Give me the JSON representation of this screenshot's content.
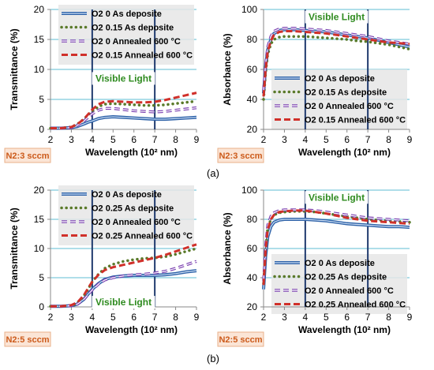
{
  "colors": {
    "o2_low": "#2e62a8",
    "o2_mid": "#5a7a2a",
    "o2_low_annealed": "#7a3fb0",
    "o2_mid_annealed": "#d0302a",
    "visible_text": "#2e8b1f",
    "condition_text": "#cc5a1a",
    "condition_box": "#fbe5d6",
    "gridline": "#5fbcd3"
  },
  "parts": [
    "(a)",
    "(b)"
  ],
  "chart_data": [
    {
      "type": "line",
      "xlabel": "Wavelength (10² nm)",
      "ylabel": "Transmittance (%)",
      "xlim": [
        2,
        9
      ],
      "ylim": [
        0,
        20
      ],
      "xticks": [
        2,
        3,
        4,
        5,
        6,
        7,
        8,
        9
      ],
      "yticks": [
        0,
        5,
        10,
        15,
        20
      ],
      "grid": "horizontal",
      "legend": "top",
      "condition": "N2:3 sccm",
      "visible_region": {
        "label": "Visible Light",
        "from": 4,
        "to": 7,
        "label_y": 8.5
      },
      "x": [
        2,
        2.5,
        3,
        3.3,
        3.6,
        3.8,
        4,
        4.3,
        4.6,
        5,
        5.5,
        6,
        6.5,
        7,
        7.5,
        8,
        8.5,
        9
      ],
      "series": [
        {
          "name": "O2 0 As deposite",
          "style": "solid-double",
          "values": [
            0.2,
            0.2,
            0.3,
            0.5,
            0.9,
            1.2,
            1.4,
            1.8,
            2.0,
            2.1,
            2.0,
            1.9,
            1.8,
            1.7,
            1.7,
            1.8,
            1.9,
            2.0
          ]
        },
        {
          "name": "O2 0.15 As deposite",
          "style": "dotted",
          "values": [
            0.2,
            0.2,
            0.4,
            0.9,
            1.7,
            2.4,
            3.0,
            3.8,
            4.2,
            4.3,
            4.2,
            4.1,
            4.0,
            4.0,
            4.1,
            4.3,
            4.5,
            4.7
          ]
        },
        {
          "name": "O2 0 Annealed 600 °C",
          "style": "dashed-hollow",
          "values": [
            0.2,
            0.2,
            0.3,
            0.7,
            1.4,
            2.0,
            2.6,
            3.2,
            3.5,
            3.5,
            3.3,
            3.1,
            3.0,
            2.9,
            3.0,
            3.2,
            3.4,
            3.6
          ]
        },
        {
          "name": "O2 0.15 Annealed 600 °C",
          "style": "dashed",
          "values": [
            0.2,
            0.2,
            0.4,
            0.9,
            1.7,
            2.5,
            3.3,
            4.2,
            4.6,
            4.7,
            4.6,
            4.5,
            4.5,
            4.6,
            4.9,
            5.3,
            5.7,
            6.1
          ]
        }
      ]
    },
    {
      "type": "line",
      "xlabel": "Wavelength (10² nm)",
      "ylabel": "Absorbance (%)",
      "xlim": [
        2,
        9
      ],
      "ylim": [
        20,
        100
      ],
      "xticks": [
        2,
        3,
        4,
        5,
        6,
        7,
        8,
        9
      ],
      "yticks": [
        20,
        40,
        60,
        80,
        100
      ],
      "grid": "horizontal",
      "legend": "bottom",
      "condition": "N2:3 sccm",
      "visible_region": {
        "label": "Visible Light",
        "from": 4,
        "to": 7,
        "label_y": 95
      },
      "x": [
        2,
        2.1,
        2.2,
        2.35,
        2.5,
        2.75,
        3,
        3.5,
        4,
        4.5,
        5,
        5.5,
        6,
        6.5,
        7,
        7.5,
        8,
        8.5,
        9
      ],
      "series": [
        {
          "name": "O2 0 As deposite",
          "style": "solid-double",
          "values": [
            44,
            62,
            73,
            80,
            84,
            86,
            86.5,
            86.5,
            86,
            85.5,
            85,
            84,
            83,
            82,
            81,
            79.5,
            78,
            76.5,
            75
          ]
        },
        {
          "name": "O2 0.15 As deposite",
          "style": "dotted",
          "values": [
            40,
            58,
            70,
            77,
            80,
            81.5,
            82,
            82,
            82,
            81.5,
            81,
            80.5,
            80,
            79,
            78.5,
            77.5,
            76.5,
            75,
            73.5
          ]
        },
        {
          "name": "O2 0 Annealed 600 °C",
          "style": "dashed-hollow",
          "values": [
            46,
            64,
            75,
            82,
            85.5,
            87,
            87.5,
            87.5,
            87,
            86.5,
            86,
            85,
            84,
            83,
            82,
            80.5,
            79,
            78,
            77
          ]
        },
        {
          "name": "O2 0.15 Annealed 600 °C",
          "style": "dashed",
          "values": [
            42,
            60,
            72,
            79,
            83,
            85,
            85.5,
            85.5,
            85,
            84.5,
            84,
            83,
            82,
            81,
            80,
            79,
            78,
            77.5,
            77
          ]
        }
      ]
    },
    {
      "type": "line",
      "xlabel": "Wavelength (10² nm)",
      "ylabel": "Transmittance (%)",
      "xlim": [
        2,
        9
      ],
      "ylim": [
        0,
        20
      ],
      "xticks": [
        2,
        3,
        4,
        5,
        6,
        7,
        8,
        9
      ],
      "yticks": [
        0,
        5,
        10,
        15,
        20
      ],
      "grid": "horizontal",
      "legend": "top",
      "condition": "N2:5 sccm",
      "visible_region": {
        "label": "Visible Light",
        "from": 4,
        "to": 7,
        "label_y": 0.8
      },
      "x": [
        2,
        2.5,
        3,
        3.3,
        3.6,
        3.8,
        4,
        4.3,
        4.6,
        5,
        5.5,
        6,
        6.5,
        7,
        7.5,
        8,
        8.5,
        9
      ],
      "series": [
        {
          "name": "O2 0 As deposite",
          "style": "solid-double",
          "values": [
            0.1,
            0.1,
            0.2,
            0.5,
            1.3,
            2.2,
            3.0,
            4.0,
            4.7,
            5.1,
            5.3,
            5.4,
            5.4,
            5.4,
            5.5,
            5.7,
            6.0,
            6.2
          ]
        },
        {
          "name": "O2 0.25 As deposite",
          "style": "dotted",
          "values": [
            0.1,
            0.1,
            0.2,
            0.7,
            1.9,
            3.0,
            4.3,
            5.6,
            6.6,
            7.3,
            7.8,
            8.1,
            8.3,
            8.4,
            8.6,
            9.0,
            9.5,
            10.0
          ]
        },
        {
          "name": "O2 0 Annealed 600 °C",
          "style": "dashed-hollow",
          "values": [
            0.1,
            0.1,
            0.2,
            0.5,
            1.3,
            2.1,
            2.9,
            3.9,
            4.6,
            5.0,
            5.3,
            5.5,
            5.6,
            5.8,
            6.1,
            6.6,
            7.2,
            7.8
          ]
        },
        {
          "name": "O2 0.25 Annealed 600 °C",
          "style": "dashed",
          "values": [
            0.1,
            0.1,
            0.3,
            0.8,
            2.0,
            3.2,
            4.3,
            5.5,
            6.3,
            6.8,
            7.2,
            7.6,
            8.0,
            8.4,
            8.9,
            9.5,
            10.1,
            10.7
          ]
        }
      ]
    },
    {
      "type": "line",
      "xlabel": "Wavelength (10² nm)",
      "ylabel": "Absorbance (%)",
      "xlim": [
        2,
        9
      ],
      "ylim": [
        20,
        100
      ],
      "xticks": [
        2,
        3,
        4,
        5,
        6,
        7,
        8,
        9
      ],
      "yticks": [
        20,
        40,
        60,
        80,
        100
      ],
      "grid": "horizontal",
      "legend": "bottom",
      "condition": "N2:5 sccm",
      "visible_region": {
        "label": "Visible Light",
        "from": 4,
        "to": 7,
        "label_y": 95
      },
      "x": [
        2,
        2.1,
        2.2,
        2.35,
        2.5,
        2.75,
        3,
        3.5,
        4,
        4.5,
        5,
        5.5,
        6,
        6.5,
        7,
        7.5,
        8,
        8.5,
        9
      ],
      "series": [
        {
          "name": "O2 0 As deposite",
          "style": "solid-double",
          "values": [
            32,
            55,
            68,
            75,
            78,
            79.5,
            80,
            80,
            80,
            79.5,
            79,
            78,
            77,
            76.5,
            76,
            75.5,
            75,
            75,
            74.5
          ]
        },
        {
          "name": "O2 0.25 As deposite",
          "style": "dotted",
          "values": [
            36,
            60,
            74,
            80,
            83,
            84.5,
            85,
            85.5,
            85.5,
            85,
            84,
            83,
            82,
            81,
            80,
            79.5,
            79,
            78.5,
            78
          ]
        },
        {
          "name": "O2 0 Annealed 600 °C",
          "style": "dashed-hollow",
          "values": [
            38,
            62,
            76,
            82,
            84.5,
            86,
            86.5,
            86.5,
            86.5,
            86,
            85,
            84,
            83,
            82,
            81,
            80.5,
            80,
            79.5,
            79
          ]
        },
        {
          "name": "O2 0.25 Annealed 600 °C",
          "style": "dashed",
          "values": [
            35,
            59,
            73,
            80,
            83,
            85,
            85.5,
            86,
            86,
            85,
            84,
            82.5,
            81,
            80,
            79,
            78.5,
            78,
            77.5,
            77
          ]
        }
      ]
    }
  ]
}
